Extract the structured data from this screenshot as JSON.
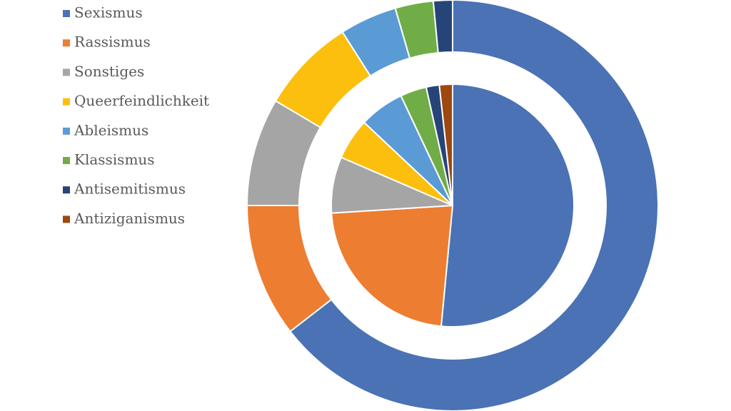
{
  "chart_data": {
    "type": "pie",
    "categories": [
      "Sexismus",
      "Rassismus",
      "Sonstiges",
      "Queerfeindlichkeit",
      "Ableismus",
      "Klassismus",
      "Antisemitismus",
      "Antiziganismus"
    ],
    "colors": [
      "#4a72b5",
      "#ed7d31",
      "#a5a5a5",
      "#fcbf0e",
      "#5b9bd5",
      "#71ad47",
      "#264478",
      "#9e480e"
    ],
    "series": [
      {
        "values": [
          64.5,
          10.5,
          8.5,
          7.5,
          4.5,
          3,
          1.5,
          0
        ]
      },
      {
        "values": [
          51.5,
          22.5,
          7.5,
          5.5,
          6,
          3.5,
          1.75,
          1.75
        ]
      }
    ],
    "legend": "left"
  }
}
